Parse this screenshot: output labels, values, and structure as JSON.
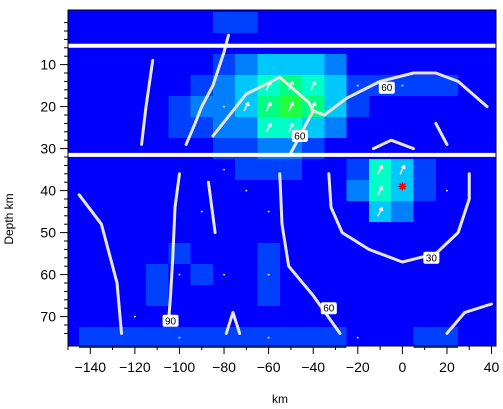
{
  "chart_data": {
    "type": "heatmap",
    "title": "",
    "xlabel": "km",
    "ylabel": "Depth km",
    "xlim": [
      -150,
      42
    ],
    "ylim": [
      77,
      -3
    ],
    "x_ticks": [
      -140,
      -120,
      -100,
      -80,
      -60,
      -40,
      -20,
      0,
      20,
      40
    ],
    "y_ticks": [
      10,
      20,
      30,
      40,
      50,
      60,
      70
    ],
    "colors": {
      "background": "#0000ff",
      "levels": [
        "#0000ff",
        "#0040ff",
        "#0080ff",
        "#00c8ff",
        "#00ffc8",
        "#00ff80",
        "#20ff40"
      ],
      "contour": "#e6e6e6",
      "separator": "#ffffff",
      "star": "#ff0000"
    },
    "separators_depth_km": [
      5.5,
      31.5
    ],
    "cells": [
      {
        "x": -80,
        "y": 0,
        "v": 1
      },
      {
        "x": -70,
        "y": 0,
        "v": 1
      },
      {
        "x": -80,
        "y": 10,
        "v": 1
      },
      {
        "x": -70,
        "y": 10,
        "v": 2
      },
      {
        "x": -60,
        "y": 10,
        "v": 3
      },
      {
        "x": -50,
        "y": 10,
        "v": 3
      },
      {
        "x": -40,
        "y": 10,
        "v": 3
      },
      {
        "x": -30,
        "y": 10,
        "v": 2
      },
      {
        "x": -90,
        "y": 15,
        "v": 1
      },
      {
        "x": -80,
        "y": 15,
        "v": 2
      },
      {
        "x": -70,
        "y": 15,
        "v": 3
      },
      {
        "x": -60,
        "y": 15,
        "v": 4
      },
      {
        "x": -50,
        "y": 15,
        "v": 5
      },
      {
        "x": -40,
        "y": 15,
        "v": 4
      },
      {
        "x": -30,
        "y": 15,
        "v": 3
      },
      {
        "x": -20,
        "y": 15,
        "v": 1
      },
      {
        "x": -10,
        "y": 15,
        "v": 1
      },
      {
        "x": 0,
        "y": 15,
        "v": 1
      },
      {
        "x": 10,
        "y": 15,
        "v": 1
      },
      {
        "x": 20,
        "y": 15,
        "v": 1
      },
      {
        "x": -100,
        "y": 20,
        "v": 1
      },
      {
        "x": -90,
        "y": 20,
        "v": 2
      },
      {
        "x": -80,
        "y": 20,
        "v": 2
      },
      {
        "x": -70,
        "y": 20,
        "v": 3
      },
      {
        "x": -60,
        "y": 20,
        "v": 5
      },
      {
        "x": -50,
        "y": 20,
        "v": 6
      },
      {
        "x": -40,
        "y": 20,
        "v": 5
      },
      {
        "x": -30,
        "y": 20,
        "v": 3
      },
      {
        "x": -20,
        "y": 20,
        "v": 1
      },
      {
        "x": -100,
        "y": 25,
        "v": 1
      },
      {
        "x": -90,
        "y": 25,
        "v": 1
      },
      {
        "x": -80,
        "y": 25,
        "v": 2
      },
      {
        "x": -70,
        "y": 25,
        "v": 2
      },
      {
        "x": -60,
        "y": 25,
        "v": 4
      },
      {
        "x": -50,
        "y": 25,
        "v": 4
      },
      {
        "x": -40,
        "y": 25,
        "v": 3
      },
      {
        "x": -30,
        "y": 25,
        "v": 2
      },
      {
        "x": -80,
        "y": 30,
        "v": 1
      },
      {
        "x": -70,
        "y": 30,
        "v": 1
      },
      {
        "x": -60,
        "y": 30,
        "v": 2
      },
      {
        "x": -50,
        "y": 30,
        "v": 2
      },
      {
        "x": -40,
        "y": 30,
        "v": 1
      },
      {
        "x": -70,
        "y": 35,
        "v": 1
      },
      {
        "x": -60,
        "y": 35,
        "v": 1
      },
      {
        "x": -50,
        "y": 35,
        "v": 1
      },
      {
        "x": -20,
        "y": 35,
        "v": 1
      },
      {
        "x": -10,
        "y": 35,
        "v": 4
      },
      {
        "x": 0,
        "y": 35,
        "v": 3
      },
      {
        "x": 10,
        "y": 35,
        "v": 1
      },
      {
        "x": -20,
        "y": 40,
        "v": 2
      },
      {
        "x": -10,
        "y": 40,
        "v": 4
      },
      {
        "x": 0,
        "y": 40,
        "v": 3
      },
      {
        "x": 10,
        "y": 40,
        "v": 1
      },
      {
        "x": -10,
        "y": 45,
        "v": 3
      },
      {
        "x": 0,
        "y": 45,
        "v": 2
      },
      {
        "x": -100,
        "y": 55,
        "v": 1
      },
      {
        "x": -60,
        "y": 55,
        "v": 1
      },
      {
        "x": -110,
        "y": 60,
        "v": 1
      },
      {
        "x": -90,
        "y": 60,
        "v": 1
      },
      {
        "x": -60,
        "y": 60,
        "v": 1
      },
      {
        "x": -110,
        "y": 65,
        "v": 1
      },
      {
        "x": -60,
        "y": 65,
        "v": 1
      },
      {
        "x": -140,
        "y": 75,
        "v": 1
      },
      {
        "x": -130,
        "y": 75,
        "v": 1
      },
      {
        "x": -120,
        "y": 75,
        "v": 1
      },
      {
        "x": -110,
        "y": 75,
        "v": 1
      },
      {
        "x": -100,
        "y": 75,
        "v": 1
      },
      {
        "x": -90,
        "y": 75,
        "v": 1
      },
      {
        "x": -80,
        "y": 75,
        "v": 1
      },
      {
        "x": -70,
        "y": 75,
        "v": 1
      },
      {
        "x": -60,
        "y": 75,
        "v": 1
      },
      {
        "x": -50,
        "y": 75,
        "v": 1
      },
      {
        "x": -40,
        "y": 75,
        "v": 1
      },
      {
        "x": -30,
        "y": 75,
        "v": 1
      },
      {
        "x": 10,
        "y": 75,
        "v": 1
      },
      {
        "x": 20,
        "y": 75,
        "v": 1
      }
    ],
    "arrows": [
      {
        "x": -60,
        "y": 15
      },
      {
        "x": -50,
        "y": 15
      },
      {
        "x": -40,
        "y": 15
      },
      {
        "x": -60,
        "y": 20
      },
      {
        "x": -50,
        "y": 20
      },
      {
        "x": -40,
        "y": 20
      },
      {
        "x": -70,
        "y": 20
      },
      {
        "x": -60,
        "y": 25
      },
      {
        "x": -50,
        "y": 25
      },
      {
        "x": -10,
        "y": 35
      },
      {
        "x": 0,
        "y": 35
      },
      {
        "x": -10,
        "y": 40
      },
      {
        "x": -10,
        "y": 45
      }
    ],
    "dots": [
      {
        "x": -90,
        "y": 20
      },
      {
        "x": -80,
        "y": 20
      },
      {
        "x": -30,
        "y": 20
      },
      {
        "x": -20,
        "y": 15
      },
      {
        "x": 0,
        "y": 15
      },
      {
        "x": -80,
        "y": 35
      },
      {
        "x": -70,
        "y": 40
      },
      {
        "x": -60,
        "y": 45
      },
      {
        "x": -90,
        "y": 45
      },
      {
        "x": -100,
        "y": 60
      },
      {
        "x": -80,
        "y": 60
      },
      {
        "x": -60,
        "y": 60
      },
      {
        "x": -120,
        "y": 70
      },
      {
        "x": -100,
        "y": 75
      },
      {
        "x": -60,
        "y": 75
      },
      {
        "x": -20,
        "y": 75
      },
      {
        "x": 20,
        "y": 40
      }
    ],
    "contours": [
      {
        "label": "60",
        "label_at": [
          -7,
          15.5
        ],
        "points": [
          [
            -85,
            27
          ],
          [
            -70,
            17
          ],
          [
            -55,
            13
          ],
          [
            -42,
            19
          ],
          [
            -40,
            21
          ],
          [
            -35,
            22
          ],
          [
            -25,
            18
          ],
          [
            -10,
            14
          ],
          [
            5,
            12
          ],
          [
            15,
            12
          ],
          [
            25,
            14
          ],
          [
            38,
            20
          ]
        ]
      },
      {
        "label": "60",
        "label_at": [
          -46,
          27
        ],
        "points": [
          [
            -40,
            21
          ],
          [
            -46,
            27
          ],
          [
            -50,
            31
          ]
        ]
      },
      {
        "label": "",
        "points": [
          [
            -97,
            29
          ],
          [
            -93,
            24
          ],
          [
            -90,
            20
          ],
          [
            -85,
            15
          ],
          [
            -80,
            7
          ],
          [
            -78,
            3
          ]
        ]
      },
      {
        "label": "",
        "points": [
          [
            -117,
            29
          ],
          [
            -115,
            20
          ],
          [
            -112,
            9
          ]
        ]
      },
      {
        "label": "",
        "points": [
          [
            -13,
            30
          ],
          [
            -5,
            28
          ],
          [
            5,
            30
          ]
        ]
      },
      {
        "label": "",
        "points": [
          [
            20,
            29
          ],
          [
            15,
            24
          ]
        ]
      },
      {
        "label": "30",
        "label_at": [
          13,
          56
        ],
        "points": [
          [
            -33,
            36
          ],
          [
            -32,
            44
          ],
          [
            -27,
            50
          ],
          [
            -15,
            54
          ],
          [
            0,
            57
          ],
          [
            15,
            55
          ],
          [
            25,
            50
          ],
          [
            30,
            42
          ],
          [
            30,
            36
          ]
        ]
      },
      {
        "label": "90",
        "label_at": [
          -104,
          71
        ],
        "points": [
          [
            -100,
            36
          ],
          [
            -102,
            44
          ],
          [
            -103,
            56
          ],
          [
            -104,
            65
          ],
          [
            -105,
            72
          ]
        ]
      },
      {
        "label": "60",
        "label_at": [
          -33,
          68
        ],
        "points": [
          [
            -55,
            36
          ],
          [
            -54,
            48
          ],
          [
            -51,
            58
          ],
          [
            -40,
            65
          ],
          [
            -28,
            74
          ]
        ]
      },
      {
        "label": "",
        "points": [
          [
            -145,
            41
          ],
          [
            -135,
            48
          ],
          [
            -128,
            62
          ],
          [
            -126,
            74
          ]
        ]
      },
      {
        "label": "",
        "points": [
          [
            -79,
            74
          ],
          [
            -76,
            69
          ],
          [
            -73,
            74
          ]
        ]
      },
      {
        "label": "",
        "points": [
          [
            -87,
            38
          ],
          [
            -84,
            50
          ]
        ]
      },
      {
        "label": "",
        "points": [
          [
            20,
            74
          ],
          [
            28,
            69
          ],
          [
            40,
            67
          ]
        ]
      }
    ],
    "marker": {
      "type": "star",
      "x": 0,
      "y": 39
    }
  }
}
